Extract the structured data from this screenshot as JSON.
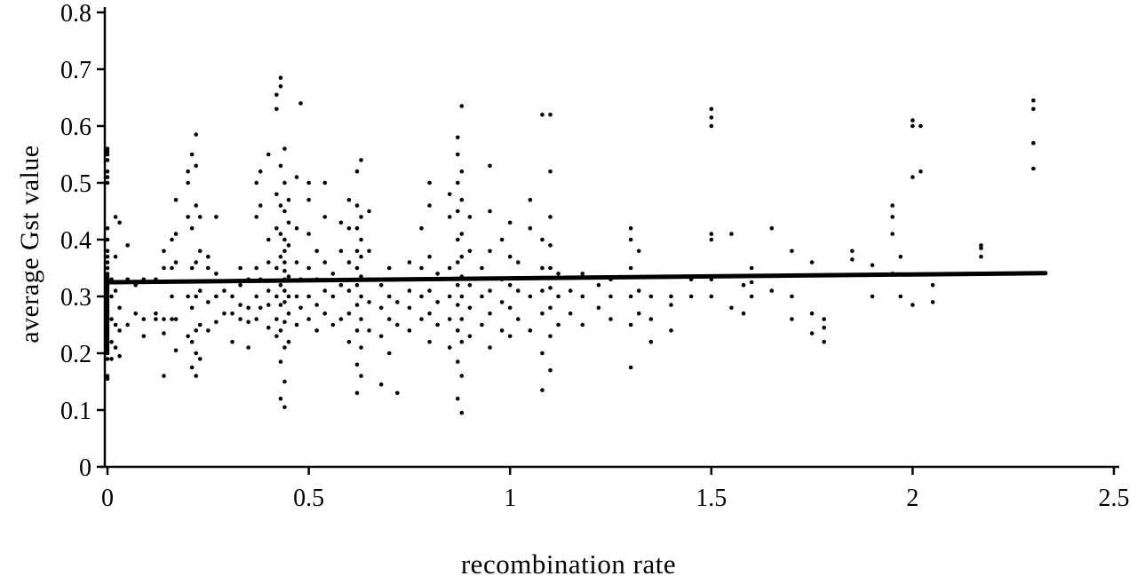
{
  "chart_data": {
    "type": "scatter",
    "title": "",
    "xlabel": "recombination rate",
    "ylabel": "average Gst value",
    "xlim": [
      0,
      2.5
    ],
    "ylim": [
      0,
      0.8
    ],
    "x_ticks": [
      0,
      0.5,
      1,
      1.5,
      2,
      2.5
    ],
    "x_tick_labels": [
      "0",
      "0.5",
      "1",
      "1.5",
      "2",
      "2.5"
    ],
    "y_ticks": [
      0,
      0.1,
      0.2,
      0.3,
      0.4,
      0.5,
      0.6,
      0.7,
      0.8
    ],
    "y_tick_labels": [
      "0",
      "0.1",
      "0.2",
      "0.3",
      "0.4",
      "0.5",
      "0.6",
      "0.7",
      "0.8"
    ],
    "grid": false,
    "marker_color": "#000000",
    "trend_line": {
      "points": [
        [
          0,
          0.325
        ],
        [
          2.33,
          0.341
        ]
      ],
      "color": "#000000",
      "width": 5
    },
    "points": [
      [
        0,
        0.155
      ],
      [
        0,
        0.16
      ],
      [
        0,
        0.19
      ],
      [
        0,
        0.2
      ],
      [
        0,
        0.205
      ],
      [
        0,
        0.21
      ],
      [
        0,
        0.215
      ],
      [
        0,
        0.22
      ],
      [
        0,
        0.225
      ],
      [
        0,
        0.23
      ],
      [
        0,
        0.235
      ],
      [
        0,
        0.24
      ],
      [
        0,
        0.245
      ],
      [
        0,
        0.25
      ],
      [
        0,
        0.255
      ],
      [
        0,
        0.26
      ],
      [
        0,
        0.265
      ],
      [
        0,
        0.27
      ],
      [
        0,
        0.275
      ],
      [
        0,
        0.28
      ],
      [
        0,
        0.285
      ],
      [
        0,
        0.29
      ],
      [
        0,
        0.295
      ],
      [
        0,
        0.3
      ],
      [
        0,
        0.305
      ],
      [
        0,
        0.31
      ],
      [
        0,
        0.315
      ],
      [
        0,
        0.32
      ],
      [
        0,
        0.325
      ],
      [
        0,
        0.33
      ],
      [
        0,
        0.335
      ],
      [
        0,
        0.34
      ],
      [
        0,
        0.35
      ],
      [
        0,
        0.36
      ],
      [
        0,
        0.37
      ],
      [
        0,
        0.38
      ],
      [
        0,
        0.4
      ],
      [
        0,
        0.42
      ],
      [
        0,
        0.5
      ],
      [
        0,
        0.51
      ],
      [
        0,
        0.52
      ],
      [
        0,
        0.54
      ],
      [
        0,
        0.55
      ],
      [
        0,
        0.555
      ],
      [
        0,
        0.56
      ],
      [
        0.01,
        0.19
      ],
      [
        0.01,
        0.22
      ],
      [
        0.01,
        0.26
      ],
      [
        0.01,
        0.3
      ],
      [
        0.01,
        0.33
      ],
      [
        0.02,
        0.21
      ],
      [
        0.02,
        0.25
      ],
      [
        0.02,
        0.31
      ],
      [
        0.02,
        0.37
      ],
      [
        0.02,
        0.44
      ],
      [
        0.03,
        0.195
      ],
      [
        0.03,
        0.24
      ],
      [
        0.03,
        0.28
      ],
      [
        0.03,
        0.43
      ],
      [
        0.05,
        0.25
      ],
      [
        0.05,
        0.33
      ],
      [
        0.05,
        0.39
      ],
      [
        0.07,
        0.27
      ],
      [
        0.07,
        0.32
      ],
      [
        0.09,
        0.23
      ],
      [
        0.09,
        0.26
      ],
      [
        0.09,
        0.33
      ],
      [
        0.12,
        0.26
      ],
      [
        0.12,
        0.27
      ],
      [
        0.12,
        0.33
      ],
      [
        0.14,
        0.16
      ],
      [
        0.14,
        0.235
      ],
      [
        0.14,
        0.26
      ],
      [
        0.14,
        0.35
      ],
      [
        0.14,
        0.38
      ],
      [
        0.16,
        0.26
      ],
      [
        0.16,
        0.3
      ],
      [
        0.16,
        0.35
      ],
      [
        0.16,
        0.4
      ],
      [
        0.17,
        0.205
      ],
      [
        0.17,
        0.26
      ],
      [
        0.17,
        0.36
      ],
      [
        0.17,
        0.41
      ],
      [
        0.17,
        0.47
      ],
      [
        0.2,
        0.23
      ],
      [
        0.2,
        0.3
      ],
      [
        0.2,
        0.44
      ],
      [
        0.2,
        0.5
      ],
      [
        0.2,
        0.52
      ],
      [
        0.21,
        0.175
      ],
      [
        0.21,
        0.22
      ],
      [
        0.21,
        0.28
      ],
      [
        0.21,
        0.35
      ],
      [
        0.21,
        0.42
      ],
      [
        0.21,
        0.55
      ],
      [
        0.22,
        0.16
      ],
      [
        0.22,
        0.2
      ],
      [
        0.22,
        0.24
      ],
      [
        0.22,
        0.3
      ],
      [
        0.22,
        0.36
      ],
      [
        0.22,
        0.46
      ],
      [
        0.22,
        0.53
      ],
      [
        0.22,
        0.585
      ],
      [
        0.23,
        0.19
      ],
      [
        0.23,
        0.25
      ],
      [
        0.23,
        0.31
      ],
      [
        0.23,
        0.38
      ],
      [
        0.23,
        0.44
      ],
      [
        0.25,
        0.24
      ],
      [
        0.25,
        0.29
      ],
      [
        0.25,
        0.35
      ],
      [
        0.25,
        0.37
      ],
      [
        0.27,
        0.255
      ],
      [
        0.27,
        0.3
      ],
      [
        0.27,
        0.34
      ],
      [
        0.27,
        0.44
      ],
      [
        0.29,
        0.27
      ],
      [
        0.29,
        0.31
      ],
      [
        0.31,
        0.22
      ],
      [
        0.31,
        0.27
      ],
      [
        0.31,
        0.3
      ],
      [
        0.33,
        0.26
      ],
      [
        0.33,
        0.285
      ],
      [
        0.33,
        0.32
      ],
      [
        0.33,
        0.35
      ],
      [
        0.35,
        0.21
      ],
      [
        0.35,
        0.255
      ],
      [
        0.35,
        0.28
      ],
      [
        0.35,
        0.33
      ],
      [
        0.37,
        0.26
      ],
      [
        0.37,
        0.3
      ],
      [
        0.37,
        0.35
      ],
      [
        0.37,
        0.44
      ],
      [
        0.37,
        0.5
      ],
      [
        0.38,
        0.28
      ],
      [
        0.38,
        0.33
      ],
      [
        0.38,
        0.46
      ],
      [
        0.38,
        0.52
      ],
      [
        0.4,
        0.245
      ],
      [
        0.4,
        0.285
      ],
      [
        0.4,
        0.31
      ],
      [
        0.4,
        0.36
      ],
      [
        0.4,
        0.4
      ],
      [
        0.4,
        0.55
      ],
      [
        0.42,
        0.23
      ],
      [
        0.42,
        0.26
      ],
      [
        0.42,
        0.3
      ],
      [
        0.42,
        0.35
      ],
      [
        0.42,
        0.42
      ],
      [
        0.42,
        0.48
      ],
      [
        0.42,
        0.63
      ],
      [
        0.42,
        0.655
      ],
      [
        0.43,
        0.12
      ],
      [
        0.43,
        0.185
      ],
      [
        0.43,
        0.24
      ],
      [
        0.43,
        0.285
      ],
      [
        0.43,
        0.32
      ],
      [
        0.43,
        0.37
      ],
      [
        0.43,
        0.41
      ],
      [
        0.43,
        0.46
      ],
      [
        0.43,
        0.53
      ],
      [
        0.43,
        0.67
      ],
      [
        0.43,
        0.685
      ],
      [
        0.44,
        0.105
      ],
      [
        0.44,
        0.15
      ],
      [
        0.44,
        0.21
      ],
      [
        0.44,
        0.255
      ],
      [
        0.44,
        0.29
      ],
      [
        0.44,
        0.31
      ],
      [
        0.44,
        0.33
      ],
      [
        0.44,
        0.345
      ],
      [
        0.44,
        0.36
      ],
      [
        0.44,
        0.38
      ],
      [
        0.44,
        0.4
      ],
      [
        0.44,
        0.45
      ],
      [
        0.44,
        0.5
      ],
      [
        0.44,
        0.56
      ],
      [
        0.45,
        0.22
      ],
      [
        0.45,
        0.27
      ],
      [
        0.45,
        0.3
      ],
      [
        0.45,
        0.335
      ],
      [
        0.45,
        0.39
      ],
      [
        0.45,
        0.43
      ],
      [
        0.45,
        0.47
      ],
      [
        0.47,
        0.25
      ],
      [
        0.47,
        0.3
      ],
      [
        0.47,
        0.36
      ],
      [
        0.47,
        0.42
      ],
      [
        0.47,
        0.51
      ],
      [
        0.48,
        0.28
      ],
      [
        0.48,
        0.33
      ],
      [
        0.48,
        0.64
      ],
      [
        0.5,
        0.26
      ],
      [
        0.5,
        0.3
      ],
      [
        0.5,
        0.35
      ],
      [
        0.5,
        0.41
      ],
      [
        0.5,
        0.47
      ],
      [
        0.5,
        0.5
      ],
      [
        0.52,
        0.24
      ],
      [
        0.52,
        0.285
      ],
      [
        0.52,
        0.33
      ],
      [
        0.52,
        0.38
      ],
      [
        0.54,
        0.27
      ],
      [
        0.54,
        0.31
      ],
      [
        0.54,
        0.36
      ],
      [
        0.54,
        0.44
      ],
      [
        0.54,
        0.5
      ],
      [
        0.56,
        0.25
      ],
      [
        0.56,
        0.3
      ],
      [
        0.56,
        0.34
      ],
      [
        0.58,
        0.26
      ],
      [
        0.58,
        0.32
      ],
      [
        0.58,
        0.38
      ],
      [
        0.58,
        0.43
      ],
      [
        0.6,
        0.22
      ],
      [
        0.6,
        0.27
      ],
      [
        0.6,
        0.31
      ],
      [
        0.6,
        0.36
      ],
      [
        0.6,
        0.42
      ],
      [
        0.6,
        0.47
      ],
      [
        0.62,
        0.13
      ],
      [
        0.62,
        0.18
      ],
      [
        0.62,
        0.24
      ],
      [
        0.62,
        0.285
      ],
      [
        0.62,
        0.32
      ],
      [
        0.62,
        0.35
      ],
      [
        0.62,
        0.38
      ],
      [
        0.62,
        0.42
      ],
      [
        0.62,
        0.46
      ],
      [
        0.62,
        0.52
      ],
      [
        0.63,
        0.16
      ],
      [
        0.63,
        0.21
      ],
      [
        0.63,
        0.26
      ],
      [
        0.63,
        0.3
      ],
      [
        0.63,
        0.335
      ],
      [
        0.63,
        0.37
      ],
      [
        0.63,
        0.4
      ],
      [
        0.63,
        0.44
      ],
      [
        0.63,
        0.54
      ],
      [
        0.65,
        0.24
      ],
      [
        0.65,
        0.29
      ],
      [
        0.65,
        0.33
      ],
      [
        0.65,
        0.38
      ],
      [
        0.65,
        0.45
      ],
      [
        0.68,
        0.145
      ],
      [
        0.68,
        0.23
      ],
      [
        0.68,
        0.28
      ],
      [
        0.68,
        0.32
      ],
      [
        0.7,
        0.2
      ],
      [
        0.7,
        0.26
      ],
      [
        0.7,
        0.3
      ],
      [
        0.7,
        0.35
      ],
      [
        0.72,
        0.13
      ],
      [
        0.72,
        0.25
      ],
      [
        0.72,
        0.29
      ],
      [
        0.72,
        0.33
      ],
      [
        0.75,
        0.24
      ],
      [
        0.75,
        0.28
      ],
      [
        0.75,
        0.31
      ],
      [
        0.75,
        0.36
      ],
      [
        0.78,
        0.26
      ],
      [
        0.78,
        0.3
      ],
      [
        0.78,
        0.35
      ],
      [
        0.78,
        0.42
      ],
      [
        0.8,
        0.22
      ],
      [
        0.8,
        0.27
      ],
      [
        0.8,
        0.31
      ],
      [
        0.8,
        0.37
      ],
      [
        0.8,
        0.46
      ],
      [
        0.8,
        0.5
      ],
      [
        0.82,
        0.25
      ],
      [
        0.82,
        0.29
      ],
      [
        0.82,
        0.34
      ],
      [
        0.85,
        0.21
      ],
      [
        0.85,
        0.26
      ],
      [
        0.85,
        0.3
      ],
      [
        0.85,
        0.35
      ],
      [
        0.85,
        0.44
      ],
      [
        0.85,
        0.48
      ],
      [
        0.87,
        0.12
      ],
      [
        0.87,
        0.185
      ],
      [
        0.87,
        0.24
      ],
      [
        0.87,
        0.285
      ],
      [
        0.87,
        0.32
      ],
      [
        0.87,
        0.36
      ],
      [
        0.87,
        0.4
      ],
      [
        0.87,
        0.45
      ],
      [
        0.87,
        0.5
      ],
      [
        0.87,
        0.55
      ],
      [
        0.87,
        0.58
      ],
      [
        0.88,
        0.095
      ],
      [
        0.88,
        0.16
      ],
      [
        0.88,
        0.22
      ],
      [
        0.88,
        0.26
      ],
      [
        0.88,
        0.3
      ],
      [
        0.88,
        0.335
      ],
      [
        0.88,
        0.37
      ],
      [
        0.88,
        0.41
      ],
      [
        0.88,
        0.47
      ],
      [
        0.88,
        0.52
      ],
      [
        0.88,
        0.635
      ],
      [
        0.9,
        0.23
      ],
      [
        0.9,
        0.28
      ],
      [
        0.9,
        0.32
      ],
      [
        0.9,
        0.38
      ],
      [
        0.9,
        0.44
      ],
      [
        0.93,
        0.25
      ],
      [
        0.93,
        0.3
      ],
      [
        0.93,
        0.35
      ],
      [
        0.95,
        0.21
      ],
      [
        0.95,
        0.27
      ],
      [
        0.95,
        0.31
      ],
      [
        0.95,
        0.38
      ],
      [
        0.95,
        0.45
      ],
      [
        0.95,
        0.53
      ],
      [
        0.98,
        0.24
      ],
      [
        0.98,
        0.29
      ],
      [
        0.98,
        0.33
      ],
      [
        0.98,
        0.4
      ],
      [
        1.0,
        0.23
      ],
      [
        1.0,
        0.28
      ],
      [
        1.0,
        0.32
      ],
      [
        1.0,
        0.37
      ],
      [
        1.0,
        0.43
      ],
      [
        1.02,
        0.26
      ],
      [
        1.02,
        0.31
      ],
      [
        1.02,
        0.36
      ],
      [
        1.05,
        0.24
      ],
      [
        1.05,
        0.3
      ],
      [
        1.05,
        0.42
      ],
      [
        1.05,
        0.47
      ],
      [
        1.08,
        0.135
      ],
      [
        1.08,
        0.2
      ],
      [
        1.08,
        0.27
      ],
      [
        1.08,
        0.31
      ],
      [
        1.08,
        0.35
      ],
      [
        1.08,
        0.4
      ],
      [
        1.08,
        0.62
      ],
      [
        1.1,
        0.17
      ],
      [
        1.1,
        0.23
      ],
      [
        1.1,
        0.28
      ],
      [
        1.1,
        0.315
      ],
      [
        1.1,
        0.35
      ],
      [
        1.1,
        0.39
      ],
      [
        1.1,
        0.44
      ],
      [
        1.1,
        0.52
      ],
      [
        1.1,
        0.62
      ],
      [
        1.12,
        0.25
      ],
      [
        1.12,
        0.3
      ],
      [
        1.12,
        0.34
      ],
      [
        1.15,
        0.27
      ],
      [
        1.15,
        0.31
      ],
      [
        1.18,
        0.25
      ],
      [
        1.18,
        0.3
      ],
      [
        1.18,
        0.34
      ],
      [
        1.22,
        0.28
      ],
      [
        1.22,
        0.32
      ],
      [
        1.25,
        0.26
      ],
      [
        1.25,
        0.3
      ],
      [
        1.25,
        0.33
      ],
      [
        1.3,
        0.175
      ],
      [
        1.3,
        0.25
      ],
      [
        1.3,
        0.3
      ],
      [
        1.3,
        0.35
      ],
      [
        1.3,
        0.4
      ],
      [
        1.3,
        0.42
      ],
      [
        1.32,
        0.27
      ],
      [
        1.32,
        0.31
      ],
      [
        1.32,
        0.38
      ],
      [
        1.35,
        0.22
      ],
      [
        1.35,
        0.26
      ],
      [
        1.35,
        0.3
      ],
      [
        1.4,
        0.24
      ],
      [
        1.4,
        0.285
      ],
      [
        1.4,
        0.3
      ],
      [
        1.45,
        0.3
      ],
      [
        1.45,
        0.33
      ],
      [
        1.5,
        0.3
      ],
      [
        1.5,
        0.33
      ],
      [
        1.5,
        0.4
      ],
      [
        1.5,
        0.41
      ],
      [
        1.5,
        0.6
      ],
      [
        1.5,
        0.615
      ],
      [
        1.5,
        0.63
      ],
      [
        1.55,
        0.28
      ],
      [
        1.55,
        0.41
      ],
      [
        1.58,
        0.27
      ],
      [
        1.58,
        0.32
      ],
      [
        1.6,
        0.3
      ],
      [
        1.6,
        0.325
      ],
      [
        1.6,
        0.35
      ],
      [
        1.65,
        0.31
      ],
      [
        1.65,
        0.42
      ],
      [
        1.7,
        0.26
      ],
      [
        1.7,
        0.3
      ],
      [
        1.7,
        0.38
      ],
      [
        1.75,
        0.235
      ],
      [
        1.75,
        0.27
      ],
      [
        1.75,
        0.36
      ],
      [
        1.78,
        0.22
      ],
      [
        1.78,
        0.245
      ],
      [
        1.78,
        0.26
      ],
      [
        1.85,
        0.365
      ],
      [
        1.85,
        0.38
      ],
      [
        1.9,
        0.3
      ],
      [
        1.9,
        0.355
      ],
      [
        1.95,
        0.34
      ],
      [
        1.95,
        0.41
      ],
      [
        1.95,
        0.44
      ],
      [
        1.95,
        0.46
      ],
      [
        1.97,
        0.3
      ],
      [
        1.97,
        0.37
      ],
      [
        2.0,
        0.285
      ],
      [
        2.0,
        0.51
      ],
      [
        2.0,
        0.6
      ],
      [
        2.0,
        0.61
      ],
      [
        2.02,
        0.52
      ],
      [
        2.02,
        0.6
      ],
      [
        2.05,
        0.29
      ],
      [
        2.05,
        0.32
      ],
      [
        2.17,
        0.37
      ],
      [
        2.17,
        0.385
      ],
      [
        2.17,
        0.39
      ],
      [
        2.3,
        0.525
      ],
      [
        2.3,
        0.57
      ],
      [
        2.3,
        0.63
      ],
      [
        2.3,
        0.645
      ]
    ]
  }
}
